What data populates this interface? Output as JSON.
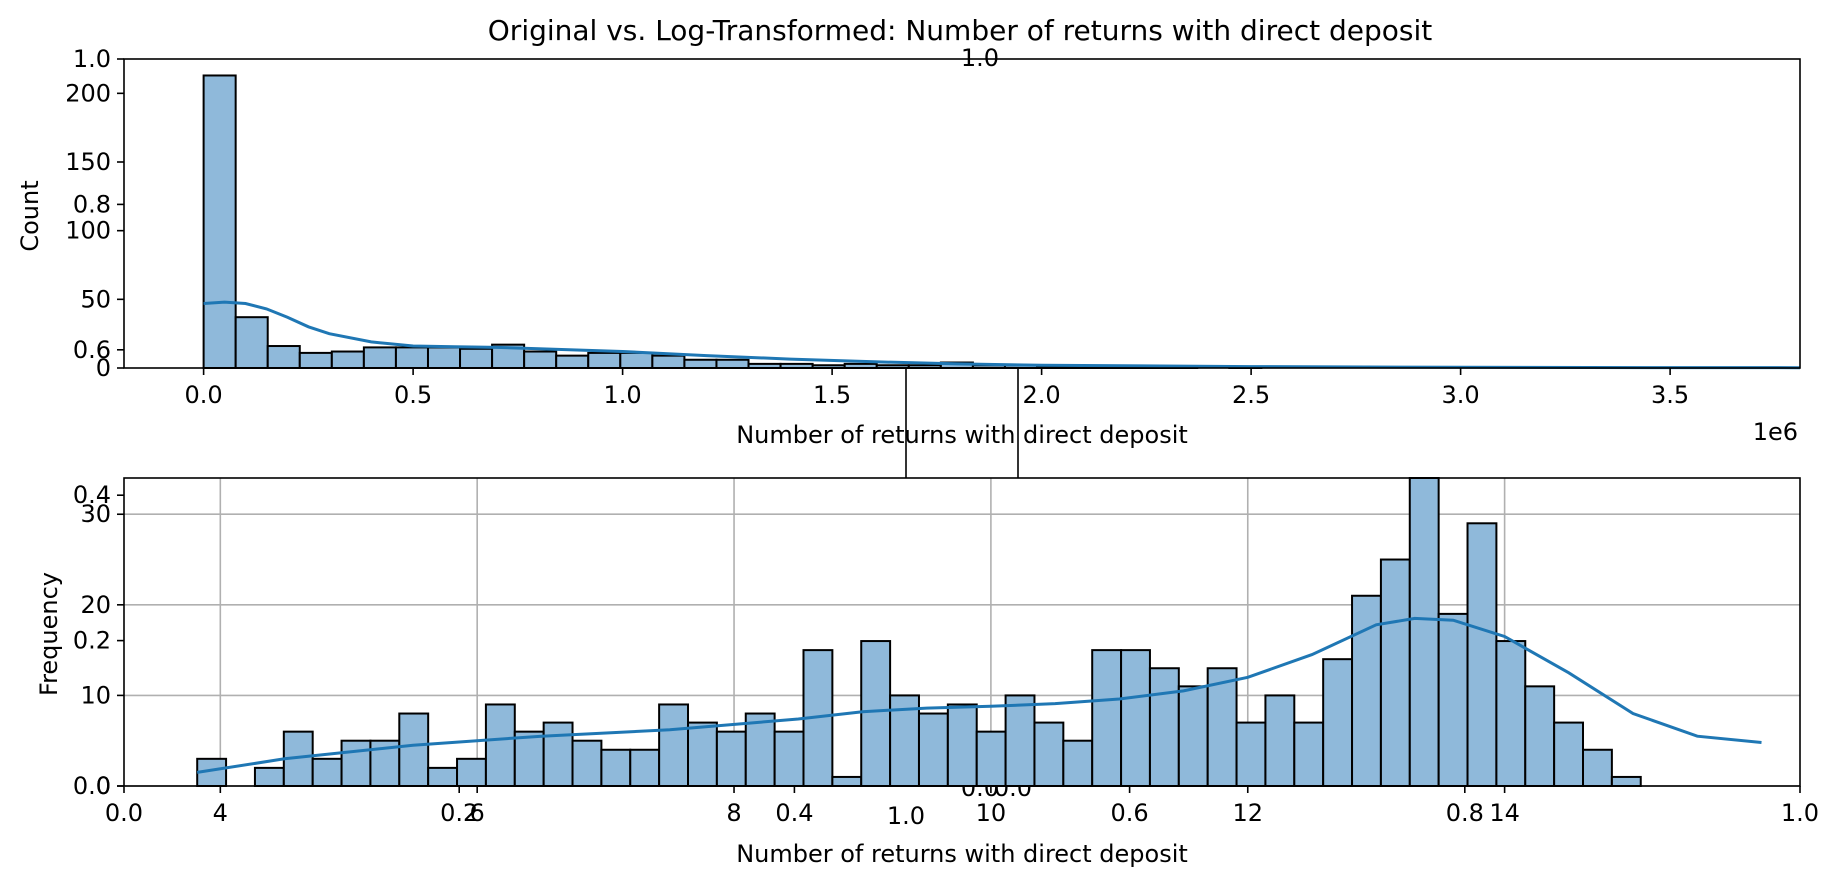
{
  "figure": {
    "title": "Original vs. Log-Transformed: Number of returns with direct deposit",
    "background": "#ffffff"
  },
  "colors": {
    "bar_fill": "#8fb9da",
    "bar_edge": "#000000",
    "kde_line": "#1f77b4",
    "grid": "#b0b0b0"
  },
  "chart_data": [
    {
      "type": "bar",
      "subtype": "histogram",
      "xlabel": "Number of returns with direct deposit",
      "ylabel": "Count",
      "x_offset_label": "1e6",
      "xlim": [
        -0.19,
        3.81
      ],
      "ylim": [
        0,
        225
      ],
      "xticks": [
        0.0,
        0.5,
        1.0,
        1.5,
        2.0,
        2.5,
        3.0,
        3.5
      ],
      "xtick_labels": [
        "0.0",
        "0.5",
        "1.0",
        "1.5",
        "2.0",
        "2.5",
        "3.0",
        "3.5"
      ],
      "yticks": [
        0,
        50,
        100,
        150,
        200
      ],
      "ytick_labels": [
        "0",
        "50",
        "100",
        "150",
        "200"
      ],
      "grid": false,
      "bin_start": 0.0,
      "bin_width": 0.0765,
      "counts": [
        213,
        37,
        16,
        11,
        12,
        15,
        15,
        15,
        14,
        17,
        12,
        9,
        11,
        11,
        9,
        6,
        6,
        3,
        3,
        2,
        3,
        2,
        2,
        4,
        2,
        2,
        1,
        1,
        1,
        1,
        1,
        0,
        1,
        0,
        0,
        0,
        0,
        0,
        0,
        0,
        0,
        0,
        0,
        0,
        0,
        0,
        0,
        0,
        0,
        0
      ],
      "kde": {
        "x": [
          0.0,
          0.05,
          0.1,
          0.15,
          0.2,
          0.25,
          0.3,
          0.4,
          0.5,
          0.6,
          0.7,
          0.8,
          0.9,
          1.0,
          1.2,
          1.4,
          1.6,
          1.8,
          2.0,
          2.5,
          3.0,
          3.5,
          3.81
        ],
        "y": [
          47,
          48,
          47,
          43,
          37,
          30,
          25,
          19,
          16,
          15.5,
          15,
          14,
          13,
          12,
          9,
          6.5,
          4.5,
          3,
          2,
          1,
          0.5,
          0.3,
          0.2
        ]
      }
    },
    {
      "type": "bar",
      "subtype": "histogram",
      "xlabel": "Number of returns with direct deposit",
      "ylabel": "Frequency",
      "xlim": [
        3.25,
        16.3
      ],
      "ylim": [
        0,
        34
      ],
      "xticks": [
        4,
        6,
        8,
        10,
        12,
        14
      ],
      "xtick_labels": [
        "4",
        "6",
        "8",
        "10",
        "12",
        "14"
      ],
      "yticks": [
        0,
        10,
        20,
        30
      ],
      "ytick_labels": [
        "0",
        "10",
        "20",
        "30"
      ],
      "grid": true,
      "bin_start": 3.82,
      "bin_width": 0.2248,
      "counts": [
        3,
        0,
        2,
        6,
        3,
        5,
        5,
        8,
        2,
        3,
        9,
        6,
        7,
        5,
        4,
        4,
        9,
        7,
        6,
        8,
        6,
        15,
        1,
        16,
        10,
        8,
        9,
        6,
        10,
        7,
        5,
        15,
        15,
        13,
        11,
        13,
        7,
        10,
        7,
        14,
        21,
        25,
        34,
        19,
        29,
        16,
        11,
        7,
        4,
        1
      ],
      "kde": {
        "x": [
          3.82,
          4.5,
          5.5,
          6.5,
          7.5,
          8.5,
          9.0,
          9.5,
          10.0,
          10.5,
          11.0,
          11.5,
          12.0,
          12.5,
          13.0,
          13.3,
          13.6,
          14.0,
          14.5,
          15.0,
          15.5,
          16.0
        ],
        "y": [
          1.5,
          3,
          4.5,
          5.5,
          6.2,
          7.4,
          8.2,
          8.6,
          8.8,
          9.1,
          9.6,
          10.5,
          12,
          14.5,
          17.8,
          18.5,
          18.3,
          16.5,
          12.5,
          8,
          5.5,
          4.8
        ]
      }
    },
    {
      "type": "line",
      "role": "blank-axes-overlay",
      "xlim": [
        0,
        1
      ],
      "ylim": [
        0,
        1
      ],
      "xticks": [
        0.0,
        0.2,
        0.4,
        0.6,
        0.8,
        1.0
      ],
      "xtick_labels": [
        "0.0",
        "0.2",
        "0.4",
        "0.6",
        "0.8",
        "1.0"
      ],
      "yticks": [
        0.0,
        0.2,
        0.4,
        0.6,
        0.8,
        1.0
      ],
      "ytick_labels": [
        "0.0",
        "0.2",
        "0.4",
        "0.6",
        "0.8",
        "1.0"
      ],
      "grid": false,
      "series": []
    },
    {
      "type": "line",
      "role": "hidden-center-axes",
      "visible_tick_labels": [
        "1.0",
        "0.0",
        "0.0",
        "1.0"
      ],
      "series": []
    }
  ]
}
